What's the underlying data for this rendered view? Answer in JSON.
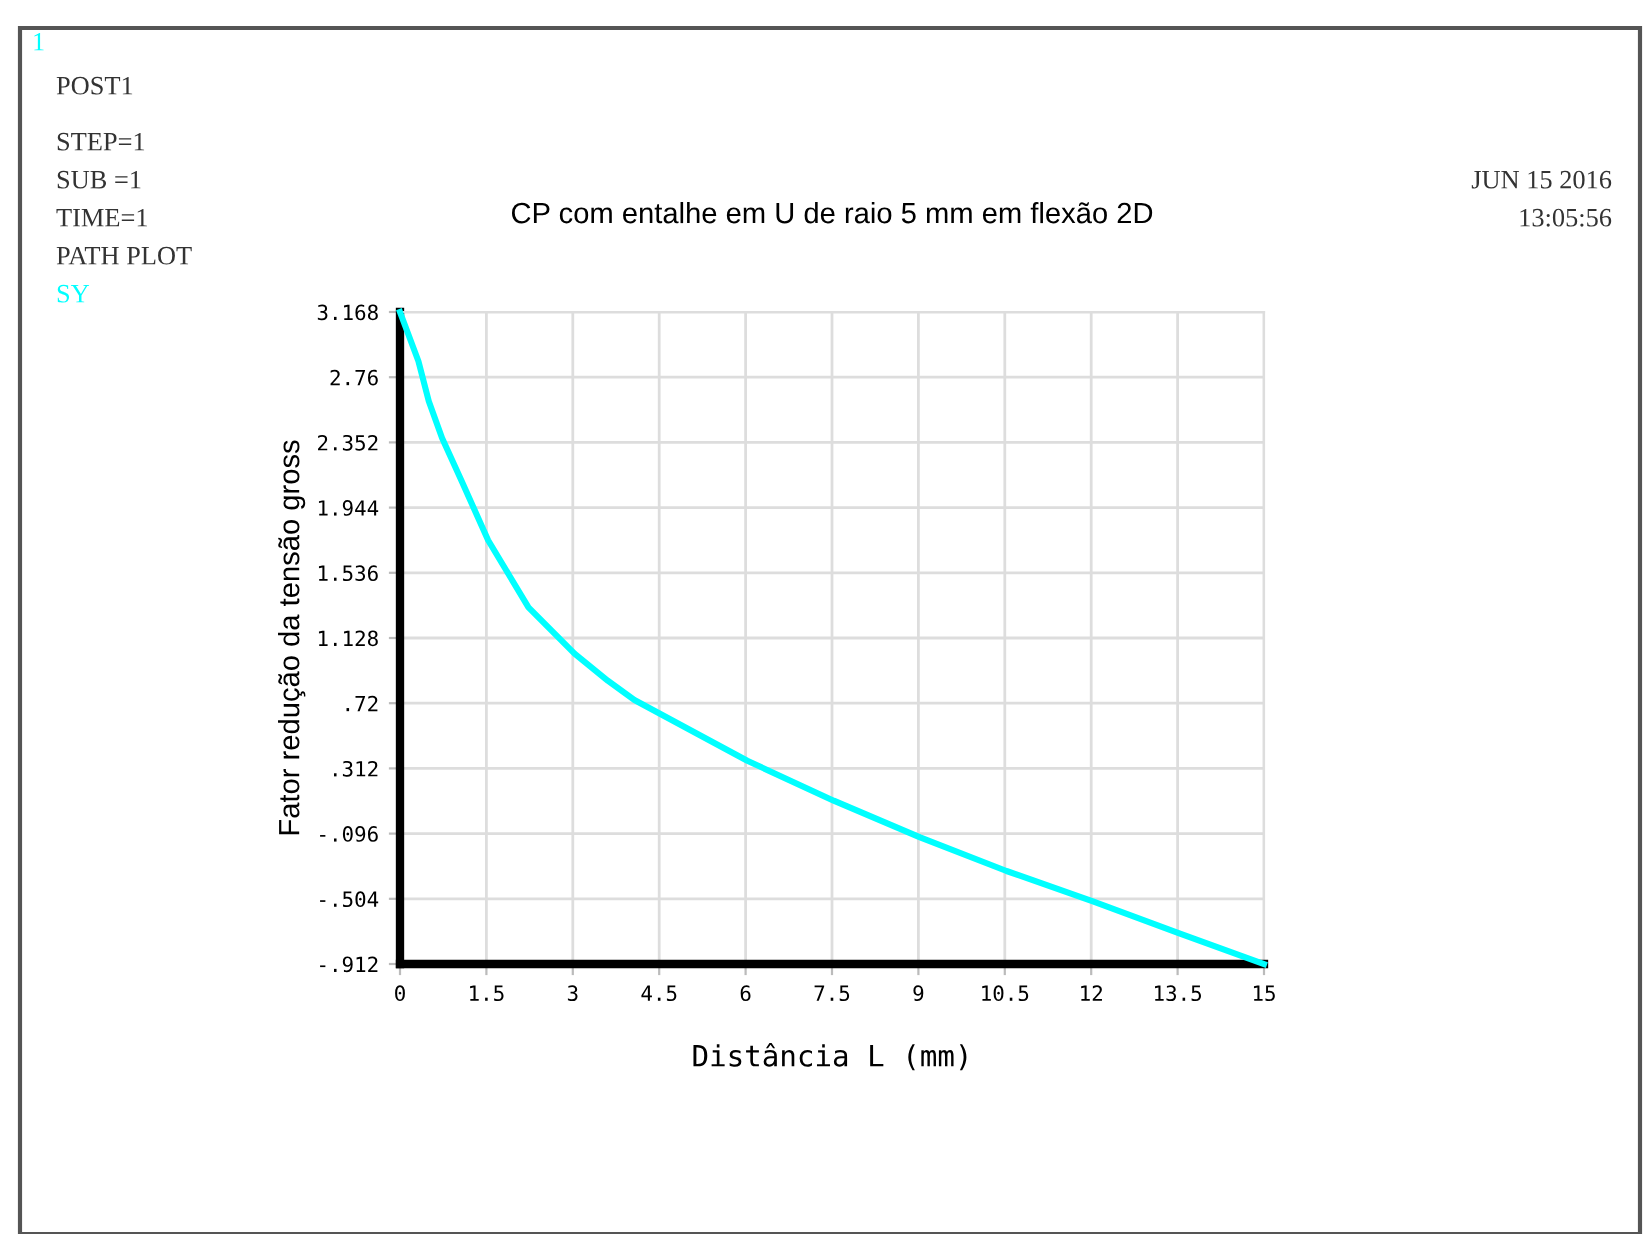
{
  "chart_data": {
    "type": "line",
    "title": "CP com entalhe em U de raio 5 mm em flexão 2D",
    "xlabel": "Distância L (mm)",
    "ylabel": "Fator redução da tensão gross",
    "annotations": [
      "1",
      "POST1",
      "STEP=1",
      "SUB =1",
      "TIME=1",
      "PATH PLOT",
      "SY",
      "JUN 15 2016",
      "13:05:56"
    ],
    "series": [
      {
        "color": "#00ffff",
        "x": [
          0,
          0.32,
          0.5,
          0.73,
          1.07,
          1.53,
          1.88,
          2.23,
          3.03,
          3.61,
          4.07,
          6.03,
          7.53,
          9.03,
          10.53,
          12.03,
          13.53,
          15
        ],
        "values": [
          3.168,
          2.86,
          2.61,
          2.38,
          2.11,
          1.74,
          1.53,
          1.32,
          1.03,
          0.86,
          0.74,
          0.36,
          0.11,
          -0.12,
          -0.33,
          -0.52,
          -0.72,
          -0.912
        ]
      }
    ],
    "xlim": [
      0,
      15
    ],
    "xticks": [
      0,
      1.5,
      3,
      4.5,
      6,
      7.5,
      9,
      10.5,
      12,
      13.5,
      15
    ],
    "ylim": [
      -0.912,
      3.168
    ],
    "yticks": [
      {
        "value": -0.912,
        "label": "-.912"
      },
      {
        "value": -0.504,
        "label": "-.504"
      },
      {
        "value": -0.096,
        "label": "-.096"
      },
      {
        "value": 0.312,
        "label": ".312"
      },
      {
        "value": 0.72,
        "label": ".72"
      },
      1.128,
      1.536,
      1.944,
      2.352,
      2.76,
      3.168
    ],
    "grid": true,
    "line_style": "solid",
    "marker": "none"
  }
}
